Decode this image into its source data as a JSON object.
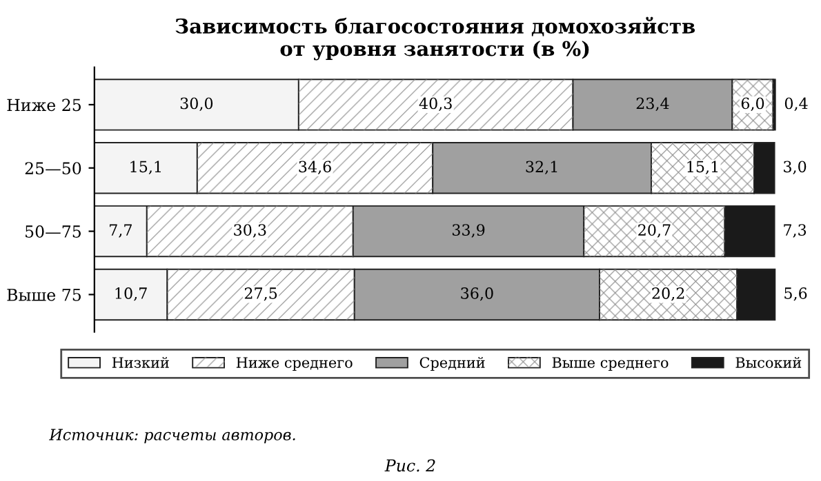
{
  "chart_data": {
    "type": "bar",
    "orientation": "horizontal",
    "stacked": true,
    "title": "Зависимость благосостояния домохозяйств\nот уровня занятости (в %)",
    "categories": [
      "Ниже 25",
      "25—50",
      "50—75",
      "Выше 75"
    ],
    "series": [
      {
        "name": "Низкий",
        "color": "#f4f4f4",
        "values": [
          30.0,
          15.1,
          7.7,
          10.7
        ],
        "value_labels": [
          "30,0",
          "15,1",
          "7,7",
          "10,7"
        ]
      },
      {
        "name": "Ниже среднего",
        "color": "#ffffff",
        "values": [
          40.3,
          34.6,
          30.3,
          27.5
        ],
        "value_labels": [
          "40,3",
          "34,6",
          "30,3",
          "27,5"
        ]
      },
      {
        "name": "Средний",
        "color": "#a0a0a0",
        "values": [
          23.4,
          32.1,
          33.9,
          36.0
        ],
        "value_labels": [
          "23,4",
          "32,1",
          "33,9",
          "36,0"
        ]
      },
      {
        "name": "Выше среднего",
        "color": "#ffffff",
        "values": [
          6.0,
          15.1,
          20.7,
          20.2
        ],
        "value_labels": [
          "6,0",
          "15,1",
          "20,7",
          "20,2"
        ]
      },
      {
        "name": "Высокий",
        "color": "#1a1a1a",
        "values": [
          0.4,
          3.0,
          7.3,
          5.6
        ],
        "value_labels": [
          "0,4",
          "3,0",
          "7,3",
          "5,6"
        ]
      }
    ],
    "xlim": [
      0,
      100.1
    ],
    "tick_labels": "y",
    "legend": "bottom",
    "grid": false,
    "annotations": [
      "Источник: расчеты авторов.",
      "Рис. 2"
    ]
  }
}
